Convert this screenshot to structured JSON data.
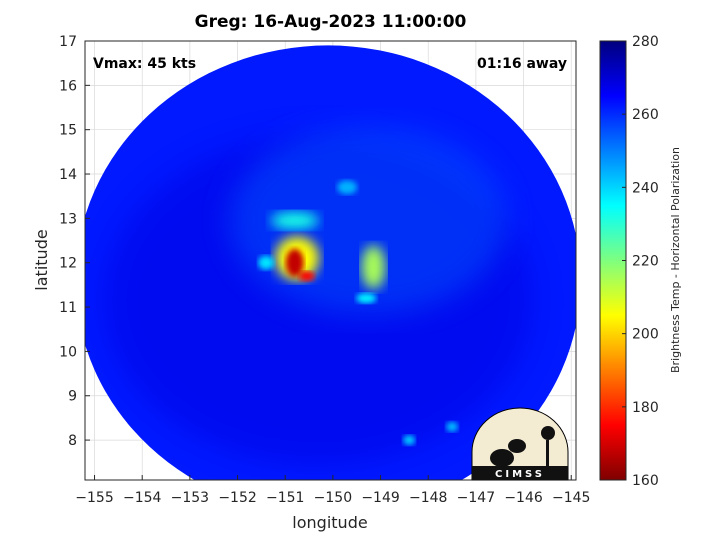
{
  "chart_data": {
    "type": "heatmap",
    "title": "Greg: 16-Aug-2023 11:00:00",
    "xlabel": "longitude",
    "ylabel": "latitude",
    "xlim": [
      -155.2,
      -144.9
    ],
    "ylim": [
      7.1,
      17
    ],
    "x_ticks": [
      -155,
      -154,
      -153,
      -152,
      -151,
      -150,
      -149,
      -148,
      -147,
      -146,
      -145
    ],
    "y_ticks": [
      8,
      9,
      10,
      11,
      12,
      13,
      14,
      15,
      16,
      17
    ],
    "grid": true,
    "annotations": {
      "left": "Vmax: 45 kts",
      "right": "01:16 away"
    },
    "colorbar": {
      "label": "Brightness Temp - Horizontal Polarization",
      "range": [
        160,
        280
      ],
      "ticks": [
        160,
        180,
        200,
        220,
        240,
        260,
        280
      ],
      "colormap": [
        "#7f0000",
        "#ff0000",
        "#ff7f00",
        "#ffff00",
        "#7fff7f",
        "#00ffff",
        "#007fff",
        "#0000ff",
        "#00007f"
      ]
    },
    "swath": {
      "center_lon": -150.1,
      "center_lat": 11.6,
      "radius_deg": 5.3,
      "background_temp": 262
    },
    "features": [
      {
        "name": "eye-core",
        "lon": -150.8,
        "lat": 12.0,
        "temp": 168
      },
      {
        "name": "core-tail",
        "lon": -150.55,
        "lat": 11.7,
        "temp": 175
      },
      {
        "name": "core-ring",
        "lon": -150.75,
        "lat": 12.1,
        "temp": 205
      },
      {
        "name": "north-band",
        "lon": -150.8,
        "lat": 12.95,
        "temp": 232
      },
      {
        "name": "east-band",
        "lon": -149.15,
        "lat": 11.9,
        "temp": 215
      },
      {
        "name": "east-spot",
        "lon": -149.3,
        "lat": 11.2,
        "temp": 236
      },
      {
        "name": "west-spot",
        "lon": -151.4,
        "lat": 12.0,
        "temp": 238
      },
      {
        "name": "northeast-cell",
        "lon": -149.7,
        "lat": 13.7,
        "temp": 244
      },
      {
        "name": "southeast-cell-1",
        "lon": -148.4,
        "lat": 8.0,
        "temp": 240
      },
      {
        "name": "southeast-cell-2",
        "lon": -147.5,
        "lat": 8.3,
        "temp": 242
      }
    ],
    "logo": {
      "text": "CIMSS"
    }
  }
}
